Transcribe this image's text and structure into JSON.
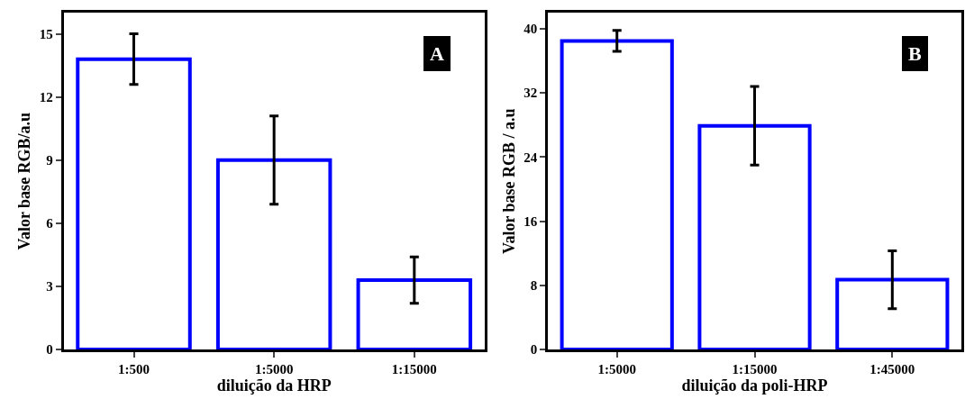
{
  "chart_data": [
    {
      "type": "bar",
      "xlabel": "diluição da HRP",
      "ylabel": "Valor base RGB/a.u",
      "categories": [
        "1:500",
        "1:5000",
        "1:15000"
      ],
      "series": [
        {
          "color": "#0000ff",
          "values": [
            13.8,
            9.0,
            3.3
          ],
          "errors": [
            1.2,
            2.1,
            1.1
          ]
        }
      ],
      "ylim": [
        0,
        16
      ],
      "yticks": [
        0,
        3,
        6,
        9,
        12,
        15
      ],
      "annotations": [
        "A"
      ]
    },
    {
      "type": "bar",
      "xlabel": "diluição da poli-HRP",
      "ylabel": "Valor base RGB / a.u",
      "categories": [
        "1:5000",
        "1:15000",
        "1:45000"
      ],
      "series": [
        {
          "color": "#0000ff",
          "values": [
            38.5,
            27.9,
            8.7
          ],
          "errors": [
            1.3,
            4.9,
            3.6
          ]
        }
      ],
      "ylim": [
        0,
        42
      ],
      "yticks": [
        0,
        8,
        16,
        24,
        32,
        40
      ],
      "annotations": [
        "B"
      ]
    }
  ]
}
